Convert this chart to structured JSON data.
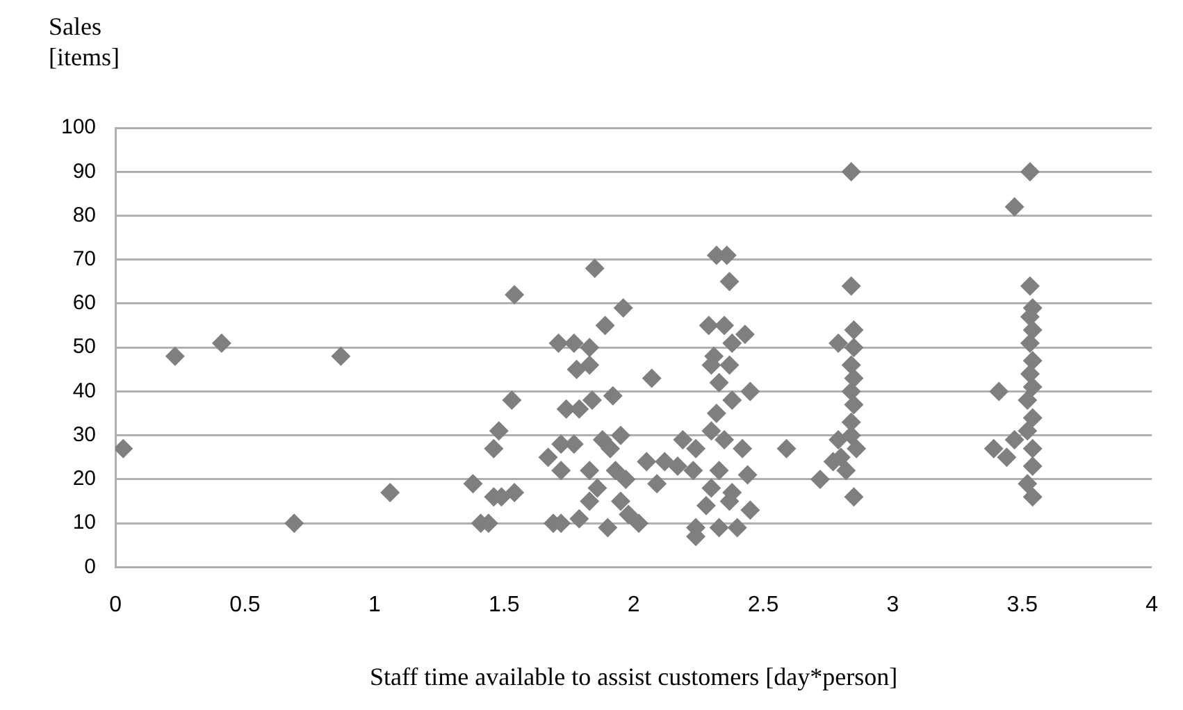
{
  "chart_data": {
    "type": "scatter",
    "xlabel": "Staff time available to assist customers [day*person]",
    "ylabel": "Sales [items]",
    "xlim": [
      0,
      4
    ],
    "xticks": [
      0,
      0.5,
      1,
      1.5,
      2,
      2.5,
      3,
      3.5,
      4
    ],
    "ylim": [
      0,
      100
    ],
    "yticks": [
      0,
      10,
      20,
      30,
      40,
      50,
      60,
      70,
      80,
      90,
      100
    ],
    "grid": "y",
    "legend": false,
    "marker": "diamond",
    "series": [
      {
        "color": "#7f7f7f",
        "x": [
          0.03,
          0.23,
          0.41,
          0.87,
          0.69,
          1.06,
          1.54,
          1.53,
          1.48,
          1.46,
          1.38,
          1.41,
          1.44,
          1.46,
          1.49,
          1.54,
          1.67,
          1.72,
          1.74,
          1.69,
          1.71,
          1.77,
          1.83,
          1.78,
          1.85,
          1.89,
          1.96,
          1.84,
          1.92,
          1.83,
          2.07,
          1.79,
          1.88,
          1.95,
          1.77,
          1.83,
          1.93,
          1.86,
          1.95,
          2.02,
          1.9,
          1.79,
          1.72,
          2.05,
          2.12,
          2.09,
          2.19,
          2.17,
          1.72,
          1.97,
          1.91,
          1.98,
          1.83,
          2.36,
          2.32,
          2.37,
          2.29,
          2.35,
          2.43,
          2.38,
          2.31,
          2.3,
          2.37,
          2.33,
          2.45,
          2.38,
          2.32,
          2.3,
          2.35,
          2.24,
          2.42,
          2.23,
          2.33,
          2.44,
          2.3,
          2.38,
          2.45,
          2.24,
          2.24,
          2.33,
          2.4,
          2.28,
          2.37,
          2.59,
          2.84,
          2.84,
          2.85,
          2.79,
          2.85,
          2.84,
          2.85,
          2.84,
          2.85,
          2.84,
          2.84,
          2.79,
          2.8,
          2.77,
          2.72,
          2.85,
          2.82,
          2.86,
          3.53,
          3.47,
          3.53,
          3.54,
          3.53,
          3.54,
          3.53,
          3.54,
          3.53,
          3.54,
          3.41,
          3.52,
          3.54,
          3.52,
          3.47,
          3.39,
          3.54,
          3.54,
          3.52,
          3.54,
          3.44
        ],
        "values": [
          27,
          48,
          51,
          48,
          10,
          17,
          62,
          38,
          31,
          27,
          19,
          10,
          10,
          16,
          16,
          17,
          25,
          28,
          36,
          10,
          51,
          51,
          50,
          45,
          68,
          55,
          59,
          38,
          39,
          46,
          43,
          36,
          29,
          30,
          28,
          22,
          22,
          18,
          15,
          10,
          9,
          11,
          10,
          24,
          24,
          19,
          29,
          23,
          22,
          20,
          27,
          12,
          15,
          71,
          71,
          65,
          55,
          55,
          53,
          51,
          48,
          46,
          46,
          42,
          40,
          38,
          35,
          31,
          29,
          27,
          27,
          22,
          22,
          21,
          18,
          17,
          13,
          9,
          7,
          9,
          9,
          14,
          15,
          27,
          90,
          64,
          54,
          51,
          50,
          46,
          43,
          40,
          37,
          33,
          30,
          29,
          25,
          24,
          20,
          16,
          22,
          27,
          90,
          82,
          64,
          59,
          57,
          54,
          51,
          47,
          44,
          41,
          40,
          38,
          34,
          31,
          29,
          27,
          27,
          23,
          19,
          16,
          25
        ]
      }
    ]
  }
}
